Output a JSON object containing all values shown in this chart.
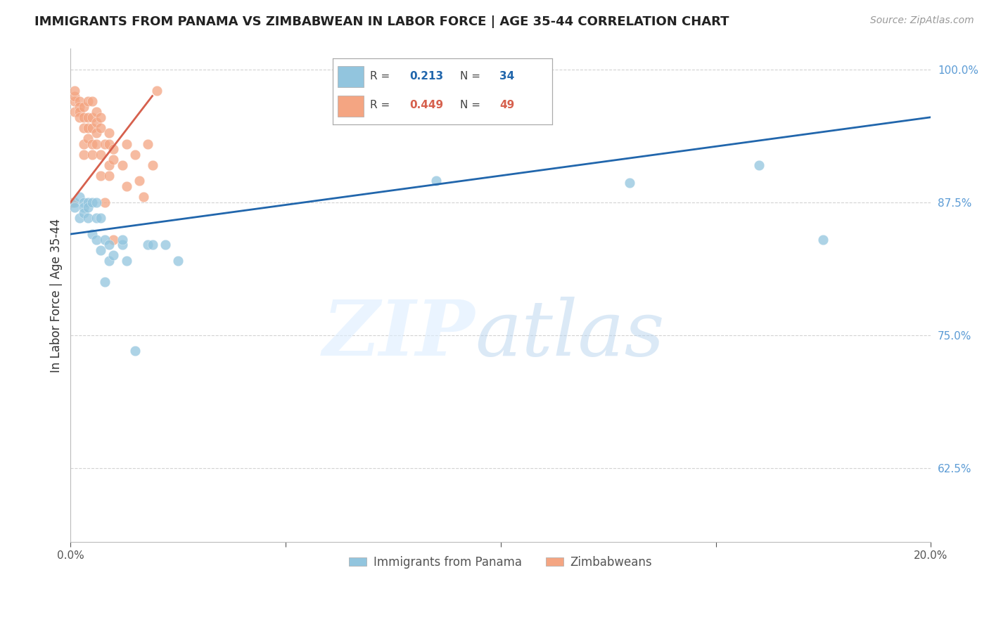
{
  "title": "IMMIGRANTS FROM PANAMA VS ZIMBABWEAN IN LABOR FORCE | AGE 35-44 CORRELATION CHART",
  "source": "Source: ZipAtlas.com",
  "ylabel": "In Labor Force | Age 35-44",
  "xlim": [
    0.0,
    0.2
  ],
  "ylim": [
    0.555,
    1.02
  ],
  "blue_R": 0.213,
  "blue_N": 34,
  "pink_R": 0.449,
  "pink_N": 49,
  "blue_color": "#92c5de",
  "pink_color": "#f4a582",
  "blue_line_color": "#2166ac",
  "pink_line_color": "#d6604d",
  "legend_label_blue": "Immigrants from Panama",
  "legend_label_pink": "Zimbabweans",
  "blue_line_x0": 0.0,
  "blue_line_y0": 0.845,
  "blue_line_x1": 0.2,
  "blue_line_y1": 0.955,
  "pink_line_x0": 0.0,
  "pink_line_y0": 0.875,
  "pink_line_x1": 0.019,
  "pink_line_y1": 0.975,
  "blue_x": [
    0.001,
    0.001,
    0.002,
    0.002,
    0.003,
    0.003,
    0.003,
    0.004,
    0.004,
    0.004,
    0.005,
    0.005,
    0.006,
    0.006,
    0.006,
    0.007,
    0.007,
    0.008,
    0.008,
    0.009,
    0.009,
    0.01,
    0.012,
    0.012,
    0.013,
    0.015,
    0.018,
    0.019,
    0.022,
    0.025,
    0.085,
    0.13,
    0.16,
    0.175
  ],
  "blue_y": [
    0.875,
    0.87,
    0.88,
    0.86,
    0.875,
    0.87,
    0.865,
    0.875,
    0.87,
    0.86,
    0.875,
    0.845,
    0.875,
    0.86,
    0.84,
    0.83,
    0.86,
    0.84,
    0.8,
    0.835,
    0.82,
    0.825,
    0.835,
    0.84,
    0.82,
    0.735,
    0.835,
    0.835,
    0.835,
    0.82,
    0.895,
    0.893,
    0.91,
    0.84
  ],
  "pink_x": [
    0.0005,
    0.001,
    0.001,
    0.001,
    0.001,
    0.002,
    0.002,
    0.002,
    0.002,
    0.003,
    0.003,
    0.003,
    0.003,
    0.003,
    0.004,
    0.004,
    0.004,
    0.004,
    0.005,
    0.005,
    0.005,
    0.005,
    0.005,
    0.006,
    0.006,
    0.006,
    0.006,
    0.007,
    0.007,
    0.007,
    0.007,
    0.008,
    0.008,
    0.009,
    0.009,
    0.009,
    0.009,
    0.01,
    0.01,
    0.01,
    0.012,
    0.013,
    0.013,
    0.015,
    0.016,
    0.017,
    0.018,
    0.019,
    0.02
  ],
  "pink_y": [
    0.875,
    0.96,
    0.97,
    0.975,
    0.98,
    0.97,
    0.965,
    0.96,
    0.955,
    0.965,
    0.955,
    0.945,
    0.93,
    0.92,
    0.97,
    0.955,
    0.945,
    0.935,
    0.97,
    0.955,
    0.945,
    0.93,
    0.92,
    0.96,
    0.95,
    0.94,
    0.93,
    0.955,
    0.945,
    0.92,
    0.9,
    0.93,
    0.875,
    0.94,
    0.93,
    0.91,
    0.9,
    0.925,
    0.915,
    0.84,
    0.91,
    0.89,
    0.93,
    0.92,
    0.895,
    0.88,
    0.93,
    0.91,
    0.98
  ]
}
